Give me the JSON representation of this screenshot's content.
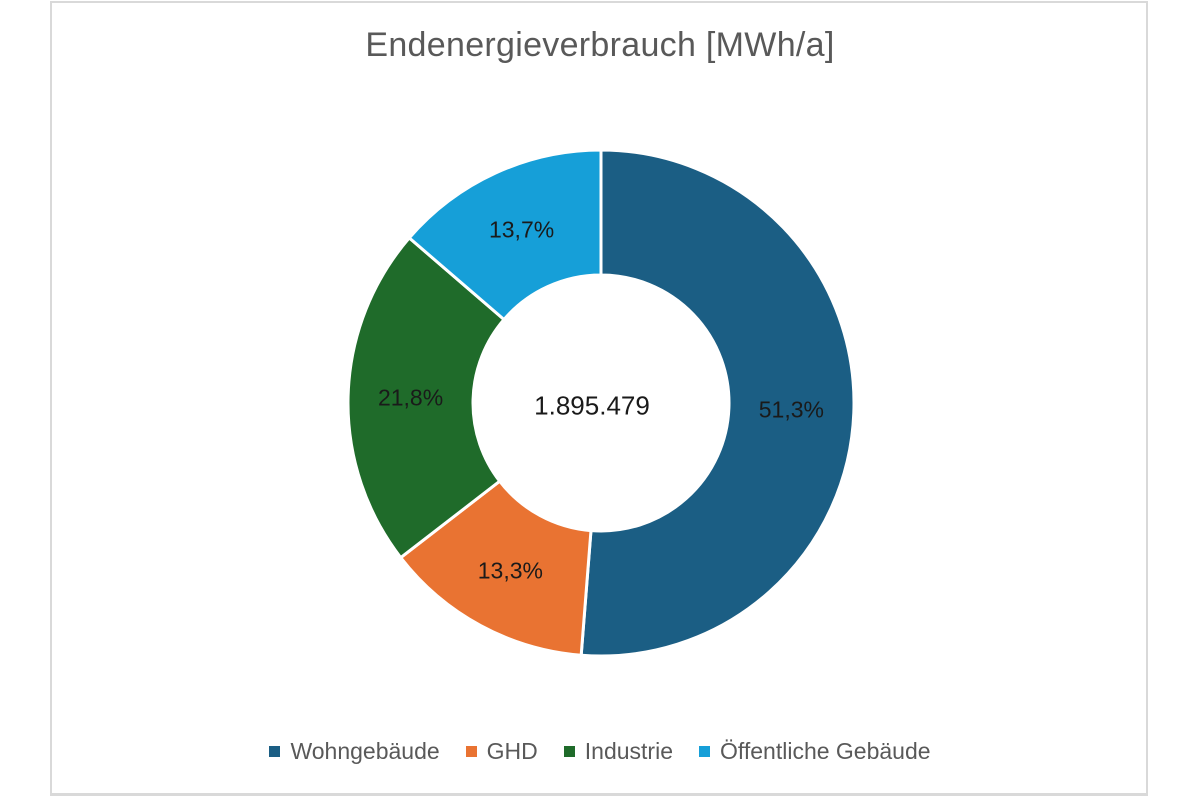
{
  "chart_data": {
    "type": "pie",
    "variant": "donut",
    "title": "Endenergieverbrauch  [MWh/a]",
    "center_label": "1.895.479",
    "total": 1895479,
    "unit": "MWh/a",
    "categories": [
      "Wohngebäude",
      "GHD",
      "Industrie",
      "Öffentliche Gebäude"
    ],
    "values": [
      51.3,
      13.3,
      21.8,
      13.7
    ],
    "value_labels": [
      "51,3%",
      "13,3%",
      "21,8%",
      "13,7%"
    ],
    "colors": [
      "#1B5E84",
      "#E97332",
      "#1F6B2A",
      "#169FD8"
    ],
    "legend_position": "bottom"
  },
  "legend": {
    "items": [
      {
        "label": "Wohngebäude",
        "color": "#1B5E84"
      },
      {
        "label": "GHD",
        "color": "#E97332"
      },
      {
        "label": "Industrie",
        "color": "#1F6B2A"
      },
      {
        "label": "Öffentliche Gebäude",
        "color": "#169FD8"
      }
    ]
  }
}
